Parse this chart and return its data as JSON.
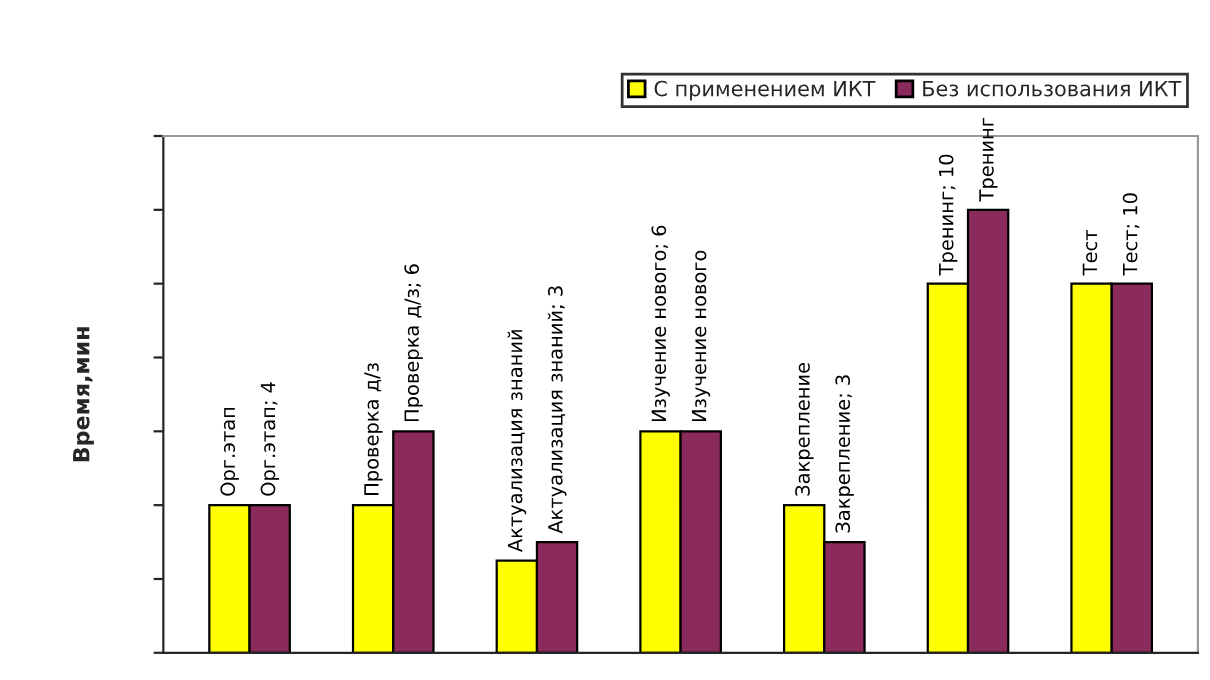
{
  "chart_data": {
    "type": "bar",
    "ylabel": "Время,мин",
    "categories": [
      null,
      null,
      null,
      null,
      null,
      null,
      null
    ],
    "series": [
      {
        "name": "С применением ИКТ",
        "color": "#ffff00",
        "values": [
          4,
          4,
          2.5,
          6,
          4,
          10,
          10
        ],
        "value_labels": [
          "Орг.этап",
          "Проверка д/з",
          "Актуализация знаний",
          "Изучение нового; 6",
          "Закрепление",
          "Тренинг; 10",
          "Тест"
        ]
      },
      {
        "name": "Без использования ИКТ",
        "color": "#8b2a5c",
        "values": [
          4,
          6,
          3,
          6,
          3,
          12,
          10
        ],
        "value_labels": [
          "Орг.этап; 4",
          "Проверка д/з; 6",
          "Актуализация знаний; 3",
          "Изучение нового",
          "Закрепление; 3",
          "Тренинг",
          "Тест; 10"
        ]
      }
    ],
    "ylim": [
      0,
      14
    ],
    "yticks": [
      {
        "value": 0,
        "label": null
      },
      {
        "value": 2,
        "label": null
      },
      {
        "value": 4,
        "label": null
      },
      {
        "value": 6,
        "label": null
      },
      {
        "value": 8,
        "label": null
      },
      {
        "value": 10,
        "label": null
      },
      {
        "value": 12,
        "label": null
      },
      {
        "value": 14,
        "label": null
      }
    ],
    "grid": false,
    "legend": "top right"
  }
}
